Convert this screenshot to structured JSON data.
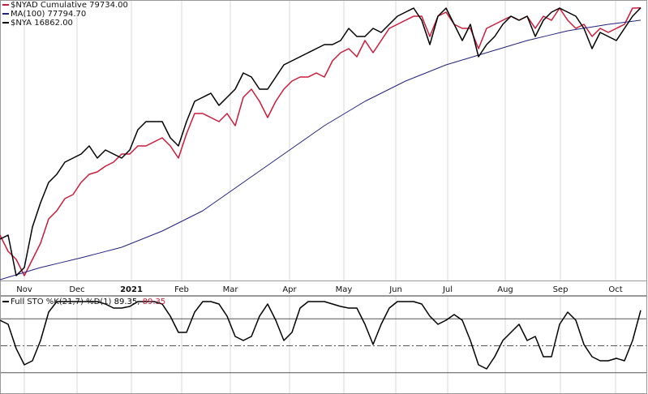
{
  "chart_data": [
    {
      "type": "line",
      "xlim": [
        0,
        79
      ],
      "xticks": [
        {
          "value": 3,
          "label": "Nov"
        },
        {
          "value": 9.5,
          "label": "Dec"
        },
        {
          "value": 16.2,
          "label": "2021",
          "emphasis": true
        },
        {
          "value": 22.4,
          "label": "Feb"
        },
        {
          "value": 28.4,
          "label": "Mar"
        },
        {
          "value": 35.7,
          "label": "Apr"
        },
        {
          "value": 42.4,
          "label": "May"
        },
        {
          "value": 48.8,
          "label": "Jun"
        },
        {
          "value": 55.2,
          "label": "Jul"
        },
        {
          "value": 62.3,
          "label": "Aug"
        },
        {
          "value": 69.1,
          "label": "Sep"
        },
        {
          "value": 75.9,
          "label": "Oct"
        }
      ],
      "ylim": [
        36500,
        81000
      ],
      "y2lim": [
        11000,
        17030
      ],
      "grid": true,
      "series": [
        {
          "name": "$NYAD Cumulative",
          "legend_value": "79734.00",
          "color": "#cc1a3a",
          "values": [
            43590,
            41010,
            39720,
            37140,
            39720,
            42300,
            46170,
            47460,
            49395,
            50040,
            51975,
            53265,
            53652,
            54555,
            55200,
            56490,
            56490,
            57780,
            57780,
            58425,
            59070,
            57780,
            55845,
            59715,
            62940,
            62940,
            62295,
            61650,
            62940,
            61005,
            65520,
            66810,
            64875,
            62295,
            64875,
            66810,
            68100,
            68745,
            68745,
            69390,
            68745,
            71325,
            72615,
            73260,
            71970,
            74550,
            72615,
            74550,
            76485,
            77130,
            77775,
            78420,
            78420,
            75195,
            78420,
            79065,
            77130,
            76485,
            76485,
            73260,
            76485,
            77130,
            77775,
            78420,
            77775,
            78420,
            76485,
            78420,
            77775,
            79710,
            77775,
            76485,
            77130,
            75195,
            76485,
            75840,
            76485,
            77130,
            79710,
            79734
          ]
        },
        {
          "name": "MA(100)",
          "legend_value": "77794.70",
          "color": "#22227f",
          "values": [
            36495,
            36882,
            37269,
            37656,
            38043,
            38430,
            38740,
            39049,
            39359,
            39668,
            39978,
            40313,
            40649,
            40984,
            41320,
            41655,
            42171,
            42687,
            43203,
            43719,
            44235,
            44880,
            45525,
            46170,
            46815,
            47460,
            48363,
            49266,
            50169,
            51072,
            51975,
            52878,
            53781,
            54684,
            55587,
            56490,
            57393,
            58296,
            59199,
            60102,
            61005,
            61779,
            62553,
            63327,
            64101,
            64875,
            65520,
            66165,
            66810,
            67455,
            68100,
            68616,
            69132,
            69648,
            70164,
            70680,
            71067,
            71454,
            71841,
            72228,
            72615,
            73002,
            73389,
            73776,
            74163,
            74550,
            74860,
            75169,
            75479,
            75788,
            76098,
            76304,
            76511,
            76717,
            76924,
            77130,
            77291,
            77453,
            77614,
            77794.7
          ]
        },
        {
          "name": "$NYA",
          "legend_value": "16862.00",
          "color": "#000000",
          "axis": "y2",
          "values": [
            11874,
            11961,
            11087,
            11262,
            12136,
            12660,
            13098,
            13272,
            13534,
            13622,
            13709,
            13884,
            13622,
            13796,
            13709,
            13622,
            13796,
            14233,
            14408,
            14408,
            14408,
            14059,
            13884,
            14408,
            14845,
            14933,
            15020,
            14758,
            14933,
            15107,
            15457,
            15370,
            15107,
            15107,
            15370,
            15632,
            15719,
            15807,
            15894,
            15981,
            16069,
            16069,
            16156,
            16418,
            16243,
            16243,
            16418,
            16331,
            16506,
            16680,
            16768,
            16855,
            16593,
            16069,
            16680,
            16855,
            16506,
            16156,
            16506,
            15807,
            16069,
            16243,
            16506,
            16680,
            16593,
            16680,
            16243,
            16593,
            16768,
            16855,
            16768,
            16680,
            16418,
            15981,
            16331,
            16243,
            16156,
            16418,
            16680,
            16862
          ]
        }
      ]
    },
    {
      "type": "line",
      "xlim": [
        0,
        79
      ],
      "ylim": [
        0,
        100
      ],
      "reference_lines": [
        20,
        50,
        80
      ],
      "series": [
        {
          "name": "Full STO %K(21,7) %D(1)",
          "legend_values": [
            "89.35",
            "89.35"
          ],
          "legend_colors": [
            "#000000",
            "#cc1a3a"
          ],
          "color": "#000000",
          "values": [
            78.4,
            73.9,
            46.8,
            28.8,
            33.3,
            55.9,
            87.4,
            99.1,
            99.1,
            99.1,
            99.1,
            99.1,
            99.1,
            96.4,
            91.9,
            91.9,
            93.7,
            99.1,
            99.1,
            99.1,
            96.4,
            82.9,
            64.9,
            64.9,
            87.4,
            99.1,
            99.1,
            96.4,
            82.9,
            60.4,
            55.9,
            60.4,
            82.9,
            96.4,
            78.4,
            55.9,
            64.9,
            91.9,
            99.1,
            99.1,
            99.1,
            96.4,
            93.7,
            91.9,
            91.9,
            73.9,
            51.4,
            73.9,
            91.9,
            99.1,
            99.1,
            99.1,
            96.4,
            82.9,
            73.9,
            78.4,
            84.7,
            78.4,
            55.9,
            28.8,
            24.3,
            37.8,
            55.9,
            64.9,
            73.9,
            55.9,
            60.4,
            37.8,
            37.8,
            73.9,
            87.4,
            78.4,
            51.4,
            37.8,
            33.3,
            33.3,
            36.0,
            33.3,
            55.9,
            89.35
          ]
        }
      ]
    }
  ]
}
